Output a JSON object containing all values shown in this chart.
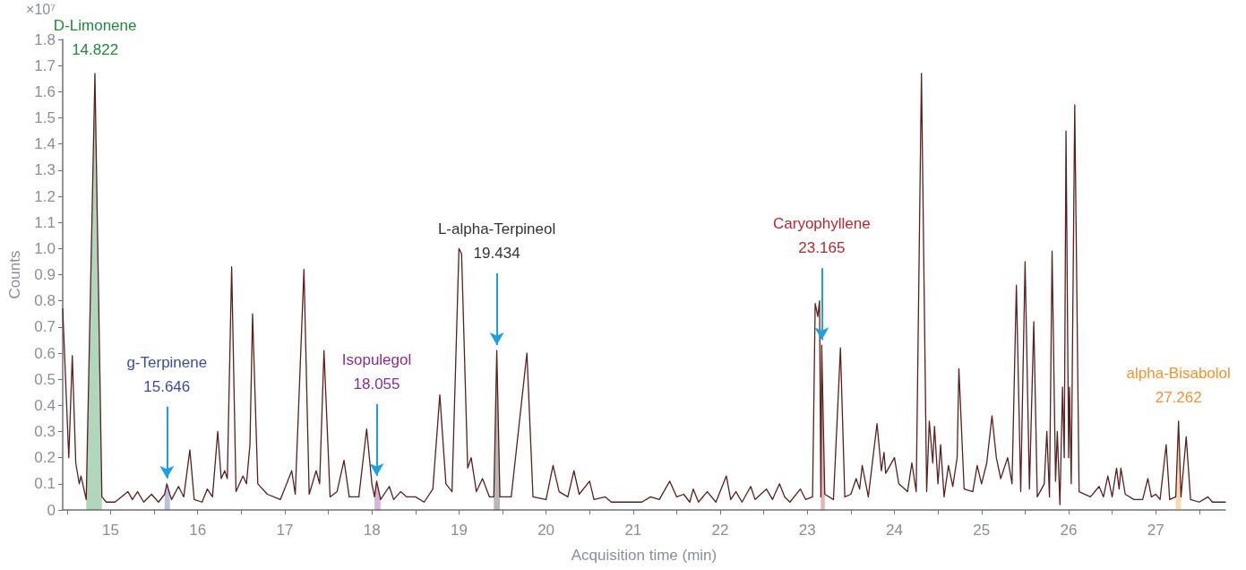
{
  "chart_data": {
    "type": "line",
    "xlabel": "Acquisition time (min)",
    "ylabel": "Counts",
    "xlim": [
      14.45,
      27.8
    ],
    "xticks": [
      {
        "value": 14.5,
        "label": null
      },
      15,
      {
        "value": 15.5,
        "label": null
      },
      16,
      {
        "value": 16.5,
        "label": null
      },
      17,
      {
        "value": 17.5,
        "label": null
      },
      18,
      {
        "value": 18.5,
        "label": null
      },
      19,
      {
        "value": 19.5,
        "label": null
      },
      20,
      {
        "value": 20.5,
        "label": null
      },
      21,
      {
        "value": 21.5,
        "label": null
      },
      22,
      {
        "value": 22.5,
        "label": null
      },
      23,
      {
        "value": 23.5,
        "label": null
      },
      24,
      {
        "value": 24.5,
        "label": null
      },
      25,
      {
        "value": 25.5,
        "label": null
      },
      26,
      {
        "value": 26.5,
        "label": null
      },
      27,
      {
        "value": 27.5,
        "label": null
      }
    ],
    "ylim": [
      0,
      1.8
    ],
    "yticks": [
      0,
      0.1,
      0.2,
      0.3,
      0.4,
      0.5,
      0.6,
      0.7,
      0.8,
      0.9,
      {
        "value": 1,
        "label": "1.0"
      },
      1.1,
      1.2,
      1.3,
      1.4,
      1.5,
      1.6,
      1.7,
      1.8
    ],
    "grid": false,
    "marker": "none",
    "line_style": "solid",
    "annotations": [
      "×10⁷",
      {
        "text": "D-Limonene\n14.822",
        "x": 14.822,
        "y": 1.67
      },
      {
        "text": "g-Terpinene\n15.646",
        "x": 15.646,
        "y": 0.1
      },
      {
        "text": "Isopulegol\n18.055",
        "x": 18.055,
        "y": 0.11
      },
      {
        "text": "L-alpha-Terpineol\n19.434",
        "x": 19.434,
        "y": 0.61
      },
      {
        "text": "Caryophyllene\n23.165",
        "x": 23.165,
        "y": 0.63
      },
      {
        "text": "alpha-Bisabolol\n27.262",
        "x": 27.262,
        "y": 0.34
      }
    ],
    "series": [
      {
        "type": "area",
        "color": "#1e8a3c",
        "x": [
          14.72,
          14.82,
          14.9
        ],
        "values": [
          0.04,
          1.67,
          0.05
        ]
      },
      {
        "type": "area",
        "color": "#3d4aa0",
        "x": [
          15.62,
          15.646,
          15.68
        ],
        "values": [
          0.06,
          0.1,
          0.06
        ]
      },
      {
        "type": "area",
        "color": "#8a2d8a",
        "x": [
          18.03,
          18.055,
          18.1
        ],
        "values": [
          0.05,
          0.11,
          0.04
        ]
      },
      {
        "type": "area",
        "color": "#333333",
        "x": [
          19.4,
          19.434,
          19.47
        ],
        "values": [
          0.05,
          0.61,
          0.05
        ]
      },
      {
        "type": "area",
        "color": "#b5282d",
        "x": [
          23.155,
          23.165,
          23.2
        ],
        "values": [
          0.05,
          0.63,
          0.06
        ]
      },
      {
        "type": "area",
        "color": "#f5922b",
        "x": [
          27.23,
          27.262,
          27.29
        ],
        "values": [
          0.05,
          0.34,
          0.05
        ]
      },
      {
        "color": "#5a1f1f",
        "x": [
          14.45,
          14.52,
          14.56,
          14.6,
          14.64,
          14.66,
          14.72,
          14.82,
          14.9,
          14.95,
          15.05,
          15.2,
          15.25,
          15.31,
          15.38,
          15.47,
          15.55,
          15.62,
          15.646,
          15.68,
          15.7,
          15.78,
          15.84,
          15.91,
          15.96,
          16.05,
          16.11,
          16.17,
          16.23,
          16.27,
          16.31,
          16.34,
          16.39,
          16.44,
          16.52,
          16.56,
          16.6,
          16.63,
          16.69,
          16.8,
          16.95,
          17.08,
          17.12,
          17.22,
          17.28,
          17.36,
          17.4,
          17.45,
          17.52,
          17.6,
          17.68,
          17.74,
          17.85,
          17.94,
          18.0,
          18.03,
          18.055,
          18.1,
          18.2,
          18.25,
          18.33,
          18.4,
          18.5,
          18.6,
          18.7,
          18.78,
          18.85,
          18.92,
          19.0,
          19.03,
          19.1,
          19.14,
          19.2,
          19.27,
          19.35,
          19.4,
          19.434,
          19.47,
          19.5,
          19.6,
          19.78,
          19.85,
          20.0,
          20.08,
          20.15,
          20.25,
          20.32,
          20.38,
          20.5,
          20.55,
          20.68,
          20.75,
          20.95,
          21.1,
          21.2,
          21.3,
          21.42,
          21.5,
          21.58,
          21.65,
          21.69,
          21.75,
          21.85,
          21.95,
          22.07,
          22.12,
          22.18,
          22.25,
          22.35,
          22.4,
          22.53,
          22.6,
          22.68,
          22.74,
          22.8,
          22.92,
          22.98,
          23.06,
          23.09,
          23.12,
          23.14,
          23.155,
          23.165,
          23.2,
          23.3,
          23.38,
          23.43,
          23.5,
          23.56,
          23.6,
          23.63,
          23.7,
          23.8,
          23.85,
          23.88,
          23.9,
          24.0,
          24.05,
          24.15,
          24.2,
          24.25,
          24.31,
          24.37,
          24.4,
          24.44,
          24.46,
          24.5,
          24.53,
          24.57,
          24.62,
          24.67,
          24.72,
          24.74,
          24.8,
          24.9,
          24.95,
          25.0,
          25.06,
          25.12,
          25.17,
          25.22,
          25.3,
          25.35,
          25.4,
          25.45,
          25.5,
          25.55,
          25.6,
          25.64,
          25.72,
          25.75,
          25.78,
          25.81,
          25.85,
          25.87,
          25.9,
          25.93,
          25.95,
          25.97,
          26.0,
          26.01,
          26.03,
          26.07,
          26.12,
          26.25,
          26.35,
          26.4,
          26.45,
          26.5,
          26.55,
          26.58,
          26.6,
          26.65,
          26.75,
          26.85,
          26.91,
          26.95,
          27.0,
          27.05,
          27.12,
          27.16,
          27.23,
          27.262,
          27.29,
          27.35,
          27.4,
          27.5,
          27.6,
          27.65,
          27.8
        ],
        "values": [
          0.77,
          0.2,
          0.59,
          0.18,
          0.1,
          0.13,
          0.04,
          1.67,
          0.05,
          0.03,
          0.03,
          0.07,
          0.04,
          0.07,
          0.03,
          0.06,
          0.03,
          0.06,
          0.1,
          0.06,
          0.04,
          0.09,
          0.05,
          0.23,
          0.04,
          0.03,
          0.08,
          0.05,
          0.3,
          0.12,
          0.15,
          0.12,
          0.93,
          0.07,
          0.13,
          0.1,
          0.25,
          0.75,
          0.1,
          0.06,
          0.04,
          0.15,
          0.06,
          0.92,
          0.06,
          0.15,
          0.1,
          0.61,
          0.05,
          0.07,
          0.19,
          0.05,
          0.05,
          0.31,
          0.1,
          0.05,
          0.11,
          0.04,
          0.09,
          0.04,
          0.07,
          0.05,
          0.05,
          0.03,
          0.08,
          0.44,
          0.1,
          0.07,
          1.0,
          0.98,
          0.16,
          0.2,
          0.07,
          0.12,
          0.05,
          0.05,
          0.61,
          0.05,
          0.05,
          0.05,
          0.6,
          0.05,
          0.04,
          0.17,
          0.07,
          0.05,
          0.15,
          0.06,
          0.11,
          0.04,
          0.05,
          0.03,
          0.03,
          0.03,
          0.05,
          0.04,
          0.11,
          0.05,
          0.06,
          0.03,
          0.08,
          0.03,
          0.07,
          0.03,
          0.13,
          0.04,
          0.07,
          0.03,
          0.09,
          0.04,
          0.08,
          0.04,
          0.1,
          0.05,
          0.03,
          0.08,
          0.04,
          0.05,
          0.79,
          0.74,
          0.8,
          0.05,
          0.63,
          0.06,
          0.04,
          0.62,
          0.05,
          0.06,
          0.12,
          0.08,
          0.17,
          0.05,
          0.33,
          0.15,
          0.22,
          0.14,
          0.2,
          0.1,
          0.07,
          0.18,
          0.07,
          1.67,
          0.07,
          0.34,
          0.18,
          0.32,
          0.1,
          0.25,
          0.05,
          0.17,
          0.09,
          0.2,
          0.54,
          0.08,
          0.07,
          0.17,
          0.1,
          0.18,
          0.36,
          0.2,
          0.12,
          0.2,
          0.1,
          0.86,
          0.07,
          0.95,
          0.08,
          0.72,
          0.05,
          0.1,
          0.3,
          0.05,
          0.99,
          0.11,
          0.3,
          0.02,
          0.47,
          0.2,
          1.45,
          0.2,
          0.47,
          0.1,
          1.55,
          0.07,
          0.05,
          0.09,
          0.05,
          0.13,
          0.05,
          0.16,
          0.08,
          0.16,
          0.06,
          0.04,
          0.04,
          0.12,
          0.05,
          0.06,
          0.04,
          0.25,
          0.04,
          0.05,
          0.34,
          0.05,
          0.28,
          0.04,
          0.03,
          0.05,
          0.03,
          0.03
        ]
      }
    ]
  }
}
